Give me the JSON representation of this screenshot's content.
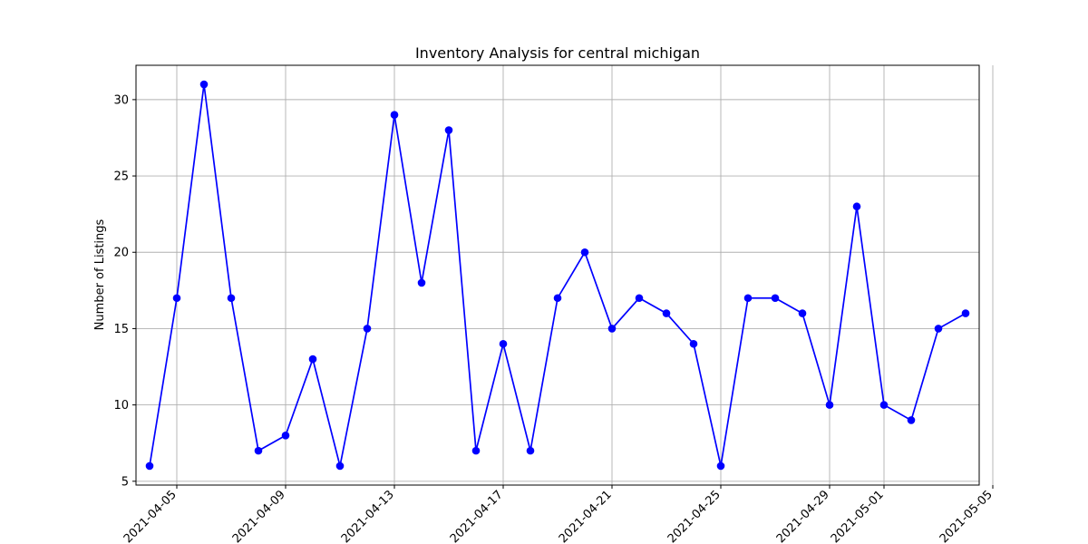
{
  "chart_data": {
    "type": "line",
    "title": "Inventory Analysis for central michigan",
    "xlabel": "",
    "ylabel": "Number of Listings",
    "x_start": "2021-04-04",
    "x": [
      "2021-04-04",
      "2021-04-05",
      "2021-04-06",
      "2021-04-07",
      "2021-04-08",
      "2021-04-09",
      "2021-04-10",
      "2021-04-11",
      "2021-04-12",
      "2021-04-13",
      "2021-04-14",
      "2021-04-15",
      "2021-04-16",
      "2021-04-17",
      "2021-04-18",
      "2021-04-19",
      "2021-04-20",
      "2021-04-21",
      "2021-04-22",
      "2021-04-23",
      "2021-04-24",
      "2021-04-25",
      "2021-04-26",
      "2021-04-27",
      "2021-04-28",
      "2021-04-29",
      "2021-04-30",
      "2021-05-01",
      "2021-05-02",
      "2021-05-03",
      "2021-05-04"
    ],
    "series": [
      {
        "values": [
          6,
          17,
          31,
          17,
          7,
          8,
          13,
          6,
          15,
          29,
          18,
          28,
          7,
          14,
          7,
          17,
          20,
          15,
          17,
          16,
          14,
          6,
          17,
          17,
          16,
          10,
          23,
          10,
          9,
          15,
          16
        ],
        "color": "#0000ff",
        "marker": "circle"
      }
    ],
    "xticks": [
      "2021-04-05",
      "2021-04-09",
      "2021-04-13",
      "2021-04-17",
      "2021-04-21",
      "2021-04-25",
      "2021-04-29",
      "2021-05-01",
      "2021-05-05"
    ],
    "yticks": [
      5,
      10,
      15,
      20,
      25,
      30
    ],
    "ylim": [
      4.75,
      32.25
    ],
    "xlim": [
      "2021-04-03 12:00",
      "2021-05-04 12:00"
    ],
    "grid": true
  }
}
